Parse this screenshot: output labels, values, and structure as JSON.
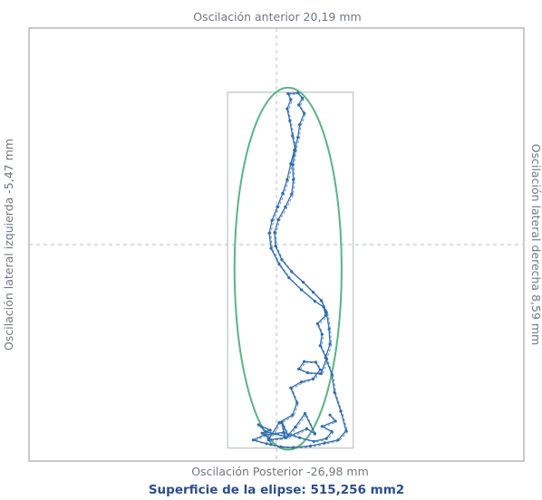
{
  "chart_data": {
    "type": "scatter",
    "title": "",
    "labels": {
      "top": "Oscilación anterior 20,19 mm",
      "bottom": "Oscilación Posterior -26,98 mm",
      "left": "Oscilación lateral izquierda -5,47 mm",
      "right": "Oscilación lateral derecha 8,59 mm"
    },
    "surface_text": "Superficie  de la elipse: 515,256 mm2",
    "units": "mm",
    "xlim": [
      -27.7,
      27.7
    ],
    "ylim": [
      -28.7,
      28.7
    ],
    "bounding_box": {
      "x_min": -5.47,
      "x_max": 8.59,
      "y_min": -26.98,
      "y_max": 20.19
    },
    "ellipse": {
      "center": [
        1.3,
        -3.2
      ],
      "semi_axis_x": 6.0,
      "semi_axis_y": 24.0,
      "area_mm2": 515.256
    },
    "series": [
      {
        "points": [
          [
            -0.6,
            -26.5
          ],
          [
            -0.9,
            -25.6
          ],
          [
            -1.6,
            -25.0
          ],
          [
            -0.7,
            -24.6
          ],
          [
            -2.0,
            -23.9
          ],
          [
            -1.2,
            -24.8
          ],
          [
            0.9,
            -25.4
          ],
          [
            0.6,
            -23.6
          ],
          [
            1.3,
            -25.3
          ],
          [
            2.1,
            -24.2
          ],
          [
            3.2,
            -22.4
          ],
          [
            4.3,
            -25.1
          ],
          [
            3.4,
            -24.4
          ],
          [
            1.1,
            -25.6
          ],
          [
            -0.9,
            -25.9
          ],
          [
            0.3,
            -23.6
          ],
          [
            1.8,
            -22.6
          ],
          [
            2.3,
            -21.0
          ],
          [
            1.6,
            -19.0
          ],
          [
            2.8,
            -18.2
          ],
          [
            4.1,
            -17.8
          ],
          [
            4.9,
            -16.6
          ],
          [
            4.4,
            -15.6
          ],
          [
            3.1,
            -15.5
          ],
          [
            2.5,
            -16.5
          ],
          [
            3.5,
            -17.0
          ],
          [
            5.0,
            -17.1
          ],
          [
            5.6,
            -15.1
          ],
          [
            4.9,
            -13.4
          ],
          [
            5.1,
            -11.9
          ],
          [
            4.6,
            -10.5
          ],
          [
            5.5,
            -9.4
          ],
          [
            5.3,
            -8.3
          ],
          [
            4.3,
            -7.5
          ],
          [
            2.8,
            -6.0
          ],
          [
            1.4,
            -4.4
          ],
          [
            0.3,
            -2.6
          ],
          [
            -0.6,
            -0.5
          ],
          [
            -0.8,
            1.5
          ],
          [
            -0.5,
            3.2
          ],
          [
            0.1,
            5.0
          ],
          [
            0.7,
            6.8
          ],
          [
            1.2,
            8.6
          ],
          [
            1.6,
            10.7
          ],
          [
            2.0,
            12.5
          ],
          [
            2.4,
            14.2
          ],
          [
            2.6,
            15.9
          ],
          [
            3.1,
            17.4
          ],
          [
            2.5,
            18.5
          ],
          [
            2.9,
            19.4
          ],
          [
            2.4,
            20.1
          ],
          [
            1.3,
            20.0
          ],
          [
            1.6,
            19.2
          ],
          [
            1.2,
            18.0
          ],
          [
            1.5,
            16.4
          ],
          [
            1.8,
            14.4
          ],
          [
            2.1,
            12.6
          ],
          [
            1.8,
            10.6
          ],
          [
            1.9,
            8.6
          ],
          [
            1.7,
            6.7
          ],
          [
            1.0,
            5.0
          ],
          [
            0.2,
            3.3
          ],
          [
            -0.2,
            1.6
          ],
          [
            -0.1,
            -0.2
          ],
          [
            0.6,
            -2.0
          ],
          [
            1.7,
            -3.6
          ],
          [
            3.0,
            -5.0
          ],
          [
            4.1,
            -6.3
          ],
          [
            5.0,
            -7.4
          ],
          [
            5.6,
            -9.0
          ],
          [
            5.9,
            -11.2
          ],
          [
            6.0,
            -13.2
          ],
          [
            5.5,
            -15.0
          ],
          [
            6.2,
            -17.2
          ],
          [
            6.5,
            -19.6
          ],
          [
            7.2,
            -22.1
          ],
          [
            7.8,
            -24.7
          ],
          [
            6.9,
            -25.9
          ],
          [
            5.4,
            -26.3
          ],
          [
            3.8,
            -26.7
          ],
          [
            1.9,
            -26.9
          ],
          [
            0.5,
            -26.8
          ],
          [
            -1.1,
            -26.4
          ],
          [
            -2.6,
            -25.9
          ],
          [
            -1.3,
            -25.2
          ],
          [
            0.8,
            -24.9
          ],
          [
            2.6,
            -25.6
          ],
          [
            4.2,
            -26.1
          ],
          [
            5.6,
            -25.7
          ],
          [
            6.2,
            -24.8
          ],
          [
            5.1,
            -24.1
          ],
          [
            6.6,
            -23.4
          ],
          [
            6.0,
            -22.6
          ]
        ]
      }
    ],
    "colors": {
      "trace": "#2f6db0",
      "trace_dashed": "#6d8fb5",
      "ellipse": "#59b584",
      "box": "#bcc3c9",
      "crosshair": "#c4c9ce",
      "frame": "#a8a8a8",
      "label": "#6f7782",
      "surface_text": "#2d4e8c"
    }
  }
}
